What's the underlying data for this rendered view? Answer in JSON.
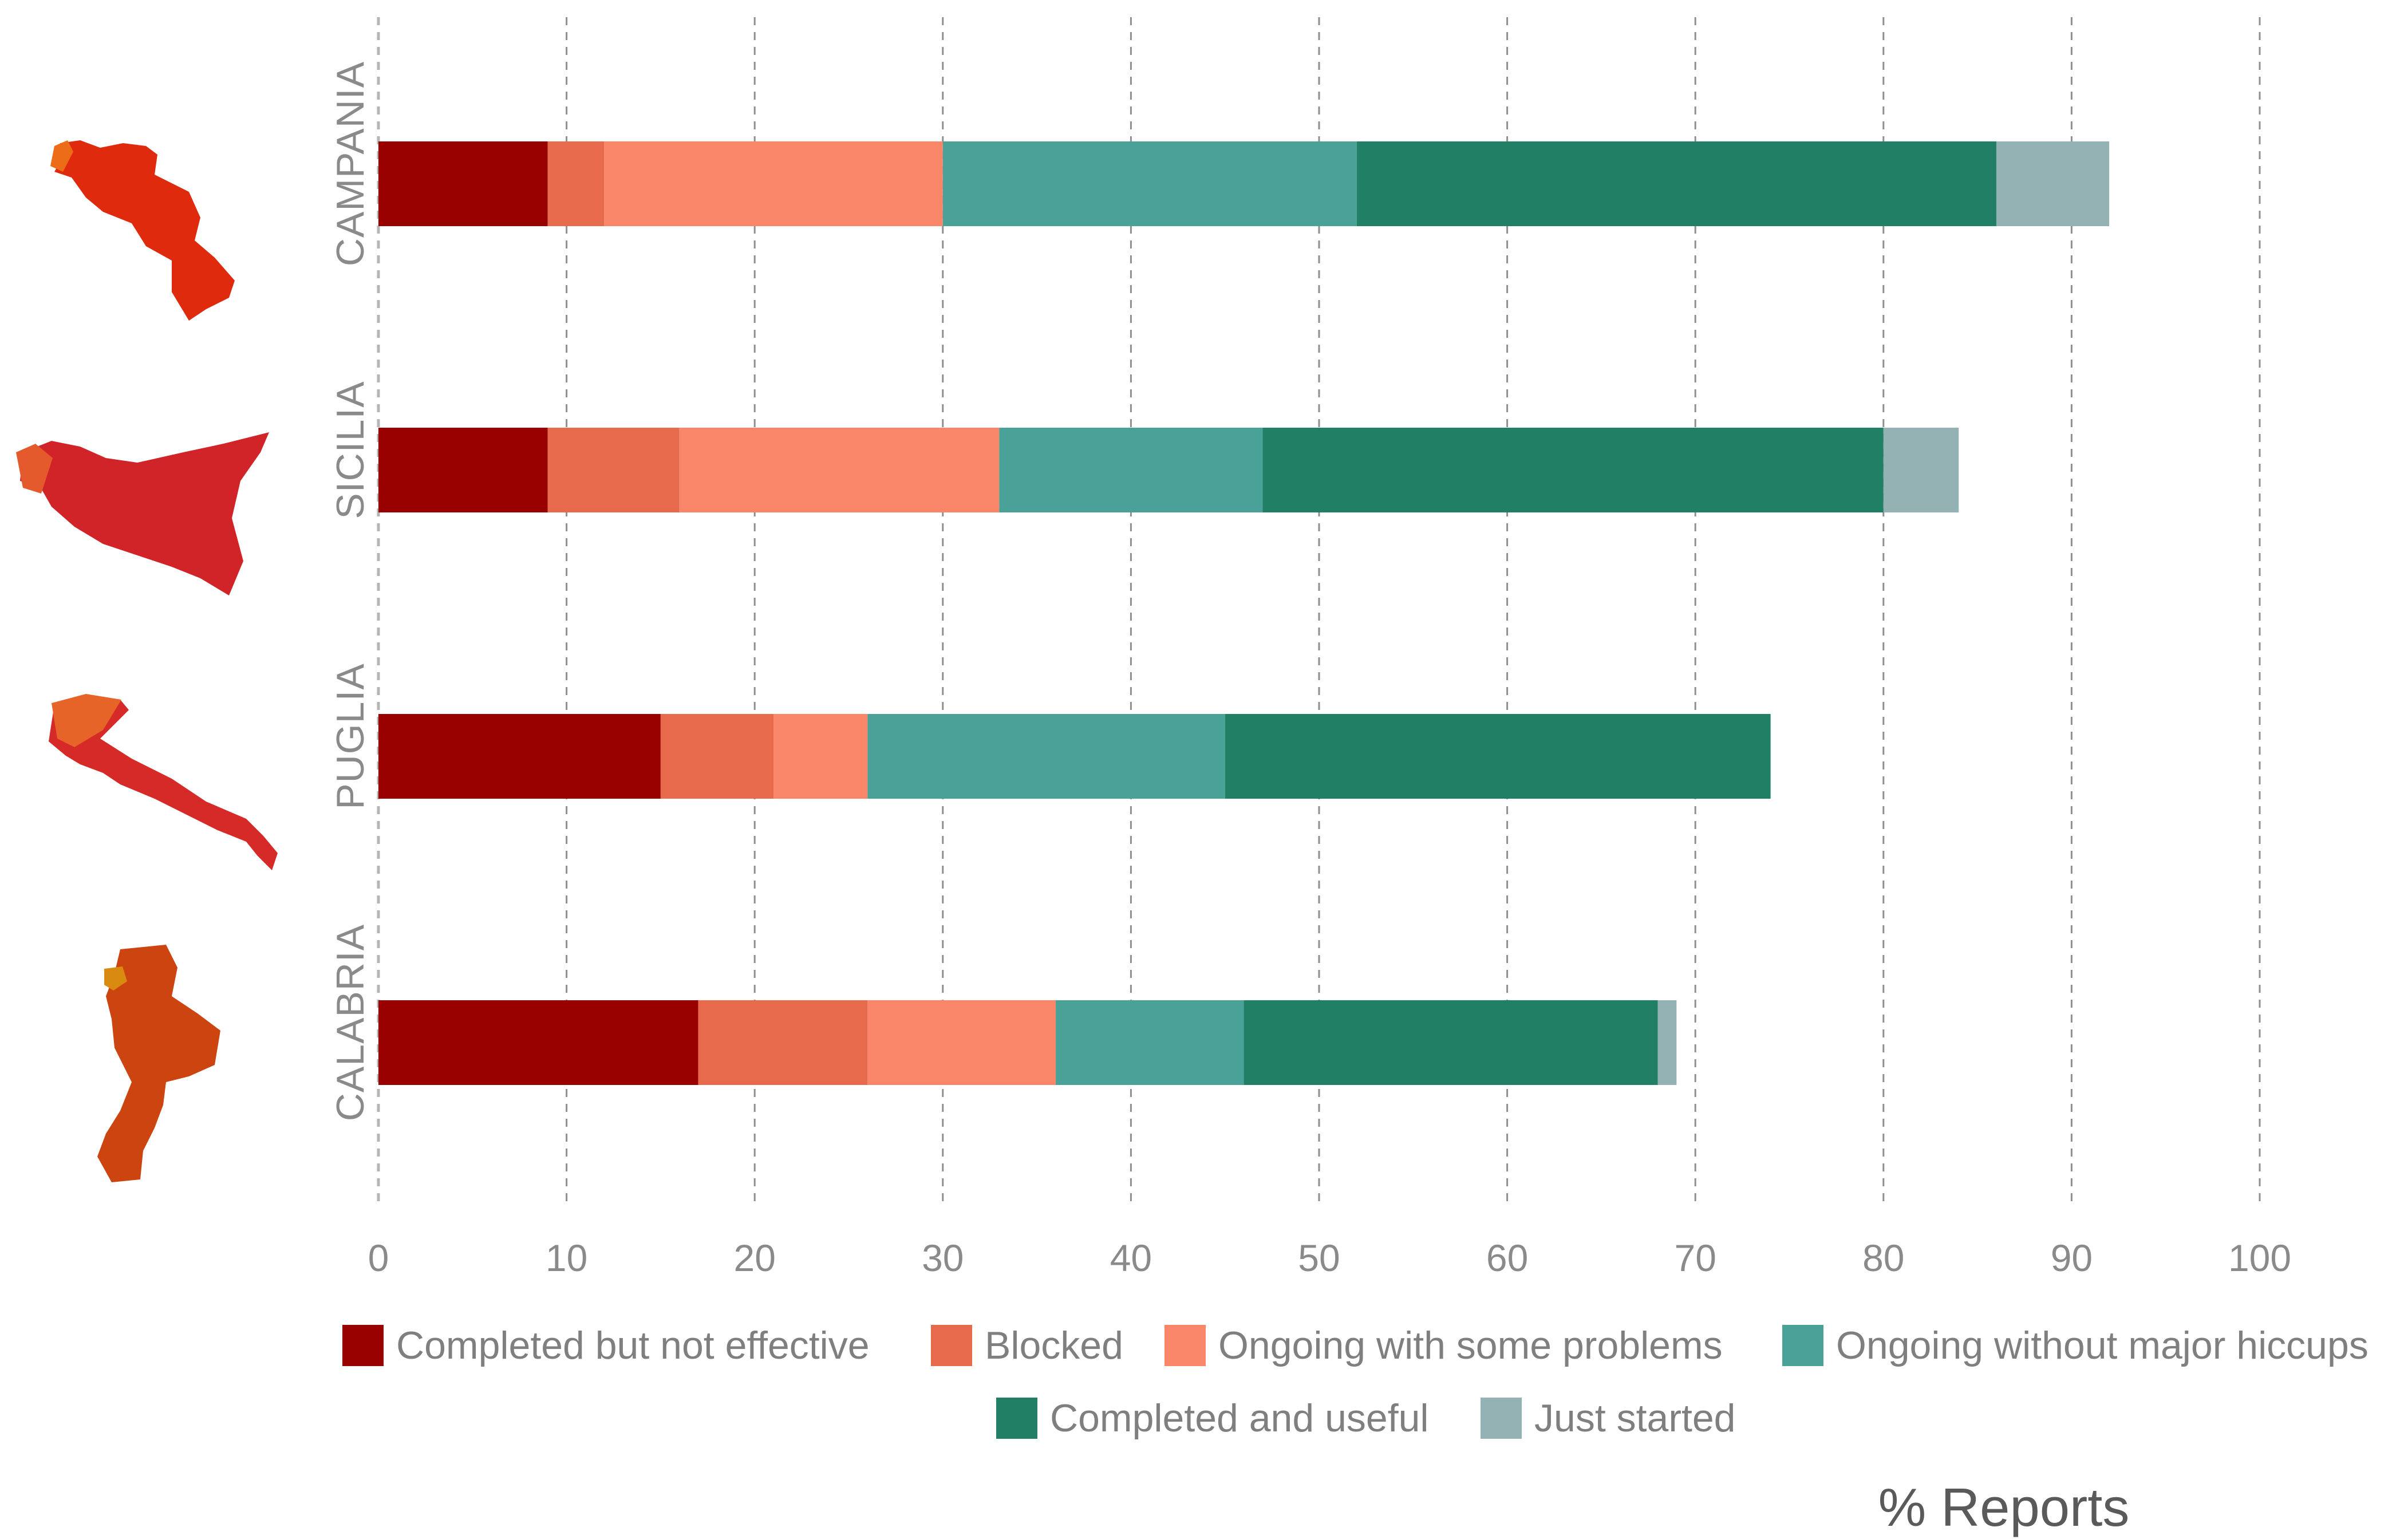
{
  "chart_data": {
    "type": "bar",
    "orientation": "horizontal",
    "stacked": true,
    "categories": [
      "CAMPANIA",
      "SICILIA",
      "PUGLIA",
      "CALABRIA"
    ],
    "series": [
      {
        "name": "Completed but not effective",
        "color": "#990000",
        "values": [
          9,
          9,
          15,
          17
        ]
      },
      {
        "name": "Blocked",
        "color": "#e76a4d",
        "values": [
          3,
          7,
          6,
          9
        ]
      },
      {
        "name": "Ongoing with some problems",
        "color": "#fa8669",
        "values": [
          18,
          17,
          5,
          10
        ]
      },
      {
        "name": "Ongoing without major hiccups",
        "color": "#4aa198",
        "values": [
          22,
          14,
          19,
          10
        ]
      },
      {
        "name": "Completed and useful",
        "color": "#217f66",
        "values": [
          34,
          33,
          29,
          22
        ]
      },
      {
        "name": "Just started",
        "color": "#94b2b4",
        "values": [
          6,
          4,
          0,
          1
        ]
      }
    ],
    "xlabel": "% Reports",
    "xlim": [
      0,
      100
    ],
    "xticks": [
      0,
      10,
      20,
      30,
      40,
      50,
      60,
      70,
      80,
      90,
      100
    ],
    "grid": true,
    "legend_position": "bottom",
    "region_map_colors": {
      "CAMPANIA": "#e02a0e",
      "SICILIA": "#d12428",
      "PUGLIA": "#d52a28",
      "CALABRIA": "#cc4410"
    }
  }
}
